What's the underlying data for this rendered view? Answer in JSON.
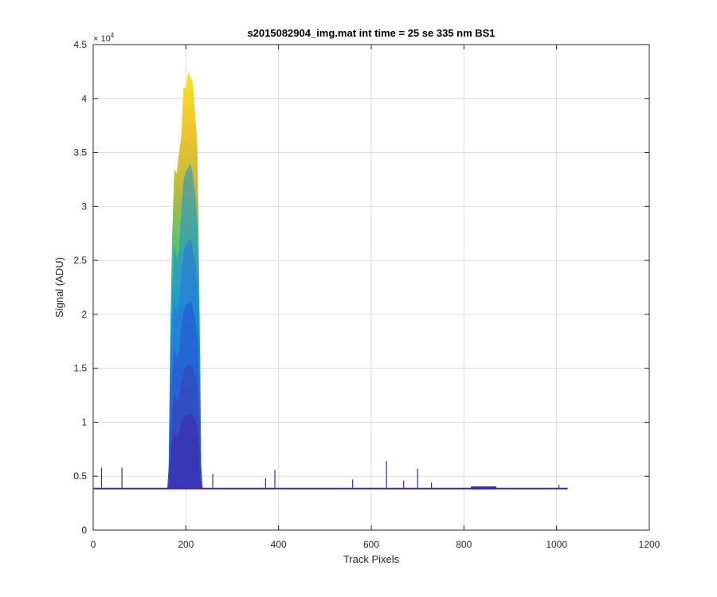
{
  "chart_data": {
    "type": "line",
    "title": "s2015082904_img.mat int time = 25 se  335 nm BS1",
    "xlabel": "Track Pixels",
    "ylabel": "Signal (ADU)",
    "xlim": [
      0,
      1200
    ],
    "ylim": [
      0,
      45000
    ],
    "y_exponent_label": "× 10",
    "y_exponent": "4",
    "grid": true,
    "x_ticks": [
      0,
      200,
      400,
      600,
      800,
      1000,
      1200
    ],
    "x_tick_labels": [
      "0",
      "200",
      "400",
      "600",
      "800",
      "1000",
      "1200"
    ],
    "y_ticks": [
      0,
      5000,
      10000,
      15000,
      20000,
      25000,
      30000,
      35000,
      40000,
      45000
    ],
    "y_tick_labels": [
      "0",
      "0.5",
      "1",
      "1.5",
      "2",
      "2.5",
      "3",
      "3.5",
      "4",
      "4.5"
    ],
    "colormap": [
      "#3e26a8",
      "#2d5bd8",
      "#1c8ed8",
      "#1ab2b5",
      "#52c476",
      "#b8bc3a",
      "#f2c430",
      "#f9e41c"
    ],
    "baseline": 3850,
    "x_range": [
      1,
      1024
    ],
    "peak_profile": [
      [
        160,
        3900
      ],
      [
        163,
        6000
      ],
      [
        166,
        17000
      ],
      [
        170,
        27000
      ],
      [
        175,
        33000
      ],
      [
        180,
        33500
      ],
      [
        185,
        34500
      ],
      [
        190,
        37000
      ],
      [
        195,
        40500
      ],
      [
        200,
        41500
      ],
      [
        205,
        42000
      ],
      [
        210,
        42500
      ],
      [
        215,
        41000
      ],
      [
        220,
        39000
      ],
      [
        225,
        35000
      ],
      [
        228,
        26000
      ],
      [
        231,
        15000
      ],
      [
        233,
        6000
      ],
      [
        236,
        3900
      ]
    ],
    "spikes": [
      [
        18,
        5800
      ],
      [
        62,
        5800
      ],
      [
        258,
        5200
      ],
      [
        372,
        4800
      ],
      [
        392,
        5600
      ],
      [
        560,
        4700
      ],
      [
        633,
        6400
      ],
      [
        670,
        4600
      ],
      [
        700,
        5700
      ],
      [
        730,
        4400
      ],
      [
        1005,
        4200
      ]
    ],
    "bump": {
      "x": [
        815,
        870
      ],
      "y": 4050
    }
  }
}
